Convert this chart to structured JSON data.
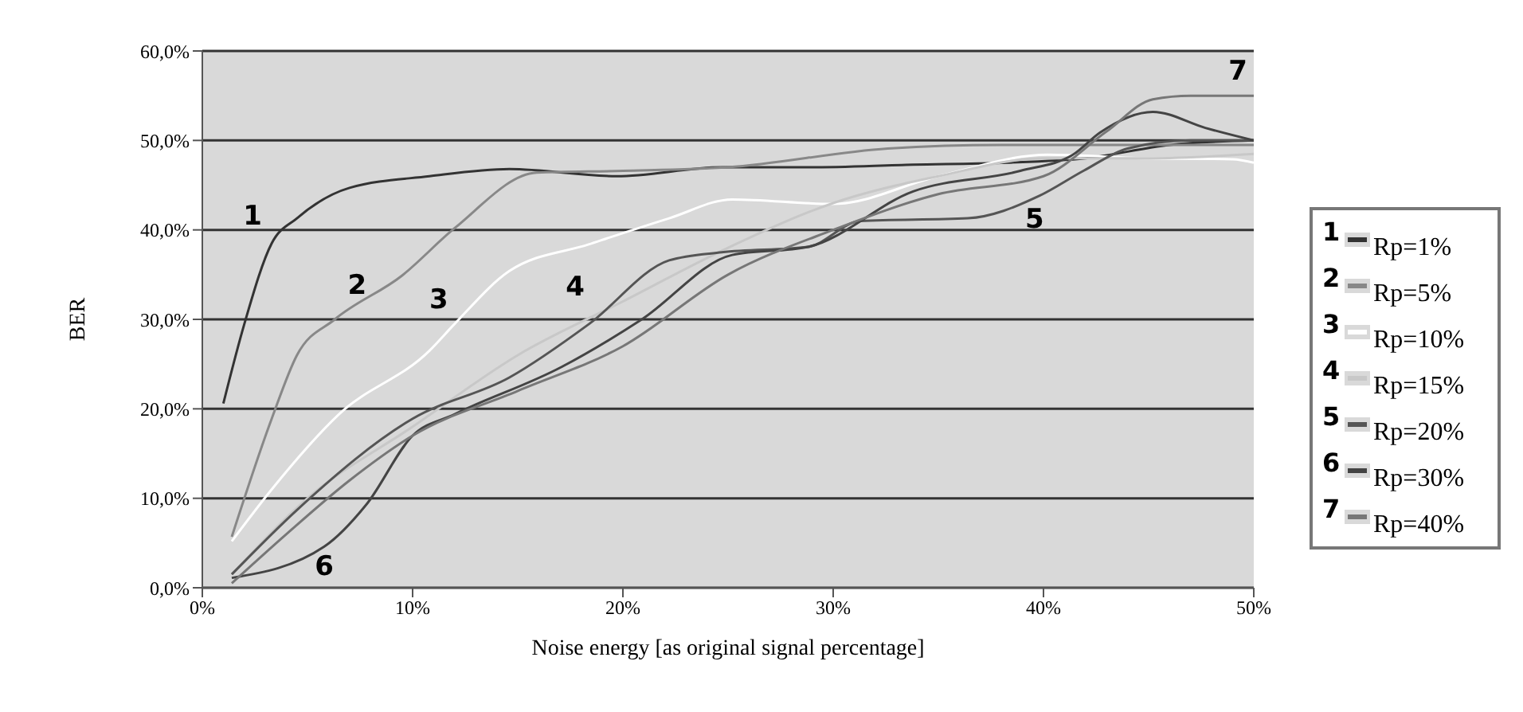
{
  "chart_data": {
    "type": "line",
    "xlabel": "Noise energy [as original signal percentage]",
    "ylabel": "BER",
    "xlim": [
      0,
      50
    ],
    "xticks": [
      {
        "value": 0,
        "label": "0%"
      },
      {
        "value": 10,
        "label": "10%"
      },
      {
        "value": 20,
        "label": "20%"
      },
      {
        "value": 30,
        "label": "30%"
      },
      {
        "value": 40,
        "label": "40%"
      },
      {
        "value": 50,
        "label": "50%"
      }
    ],
    "ylim": [
      0,
      60
    ],
    "yticks": [
      {
        "value": 0,
        "label": "0,0%"
      },
      {
        "value": 10,
        "label": "10,0%"
      },
      {
        "value": 20,
        "label": "20,0%"
      },
      {
        "value": 30,
        "label": "30,0%"
      },
      {
        "value": 40,
        "label": "40,0%"
      },
      {
        "value": 50,
        "label": "50,0%"
      },
      {
        "value": 60,
        "label": "60,0%"
      }
    ],
    "grid": "y",
    "legend": "right",
    "series": [
      {
        "name": "Rp=1%",
        "color": "#333333",
        "x": [
          1,
          2,
          3.3,
          4.5,
          7,
          10.8,
          14.6,
          19.7,
          24.7,
          28.8,
          33.8,
          38,
          42,
          46,
          50
        ],
        "values": [
          20.6,
          29.5,
          38.5,
          41.3,
          44.7,
          46,
          46.8,
          46,
          47,
          47,
          47.3,
          47.5,
          48,
          49.5,
          50
        ]
      },
      {
        "name": "Rp=5%",
        "color": "#888888",
        "x": [
          1.4,
          3.3,
          4.5,
          6.3,
          9.5,
          12,
          15.9,
          20,
          25,
          32.6,
          38,
          44,
          50
        ],
        "values": [
          5.7,
          18.9,
          26,
          30,
          34.9,
          40.2,
          46.4,
          46.6,
          47,
          49.1,
          49.5,
          49.5,
          49.5
        ]
      },
      {
        "name": "Rp=10%",
        "color": "#ffffff",
        "x": [
          1.4,
          3.3,
          6.5,
          10.8,
          12,
          14.6,
          18.4,
          22.2,
          25.2,
          30,
          35,
          40.2,
          45,
          49,
          50
        ],
        "values": [
          5.2,
          11,
          19.4,
          26.5,
          29.5,
          35.4,
          38.4,
          41.3,
          43.4,
          42.9,
          46,
          48.4,
          48,
          47.9,
          47.5
        ]
      },
      {
        "name": "Rp=15%",
        "color": "#c8c8c8",
        "x": [
          1.4,
          5,
          10,
          15,
          20,
          25,
          30,
          35,
          40,
          45,
          50
        ],
        "values": [
          1.5,
          10,
          18,
          26,
          32,
          38,
          43,
          46,
          48,
          48,
          48.5
        ]
      },
      {
        "name": "Rp=20%",
        "color": "#555555",
        "x": [
          1.4,
          4.5,
          10,
          14.6,
          18.4,
          22.2,
          24.7,
          28.8,
          31.3,
          36.4,
          39.8,
          41.9,
          44,
          47,
          50
        ],
        "values": [
          1.5,
          8.7,
          18.9,
          23.5,
          29.5,
          36.6,
          37.5,
          38.1,
          41,
          41.3,
          43.8,
          46.6,
          49.1,
          50,
          50
        ]
      },
      {
        "name": "Rp=30%",
        "color": "#444444",
        "x": [
          1.4,
          5.8,
          7.8,
          10,
          12,
          17.1,
          20.9,
          25.2,
          28.8,
          33.8,
          38.9,
          41.4,
          42.7,
          45.2,
          47.7,
          50
        ],
        "values": [
          1.1,
          4.6,
          9.3,
          17,
          19.4,
          24.7,
          30,
          37.2,
          38.1,
          44.3,
          46.6,
          48.4,
          50.9,
          53.2,
          51.4,
          50
        ]
      },
      {
        "name": "Rp=40%",
        "color": "#777777",
        "x": [
          1.4,
          4,
          7,
          10,
          15,
          20,
          25,
          30,
          35,
          40,
          43,
          45.2,
          47,
          50
        ],
        "values": [
          0.5,
          6,
          12,
          17,
          22,
          27,
          35,
          40,
          44,
          46,
          51,
          54.6,
          55,
          55
        ]
      }
    ],
    "annotations": [
      {
        "text": "1",
        "x": 3.3,
        "y": 38.5
      },
      {
        "text": "2",
        "x": 6.3,
        "y": 30
      },
      {
        "text": "3",
        "x": 12,
        "y": 29.5
      },
      {
        "text": "4",
        "x": 20,
        "y": 32
      },
      {
        "text": "5",
        "x": 39.8,
        "y": 43.8
      },
      {
        "text": "6",
        "x": 5.8,
        "y": 4.6
      },
      {
        "text": "7",
        "x": 50,
        "y": 55
      }
    ]
  }
}
